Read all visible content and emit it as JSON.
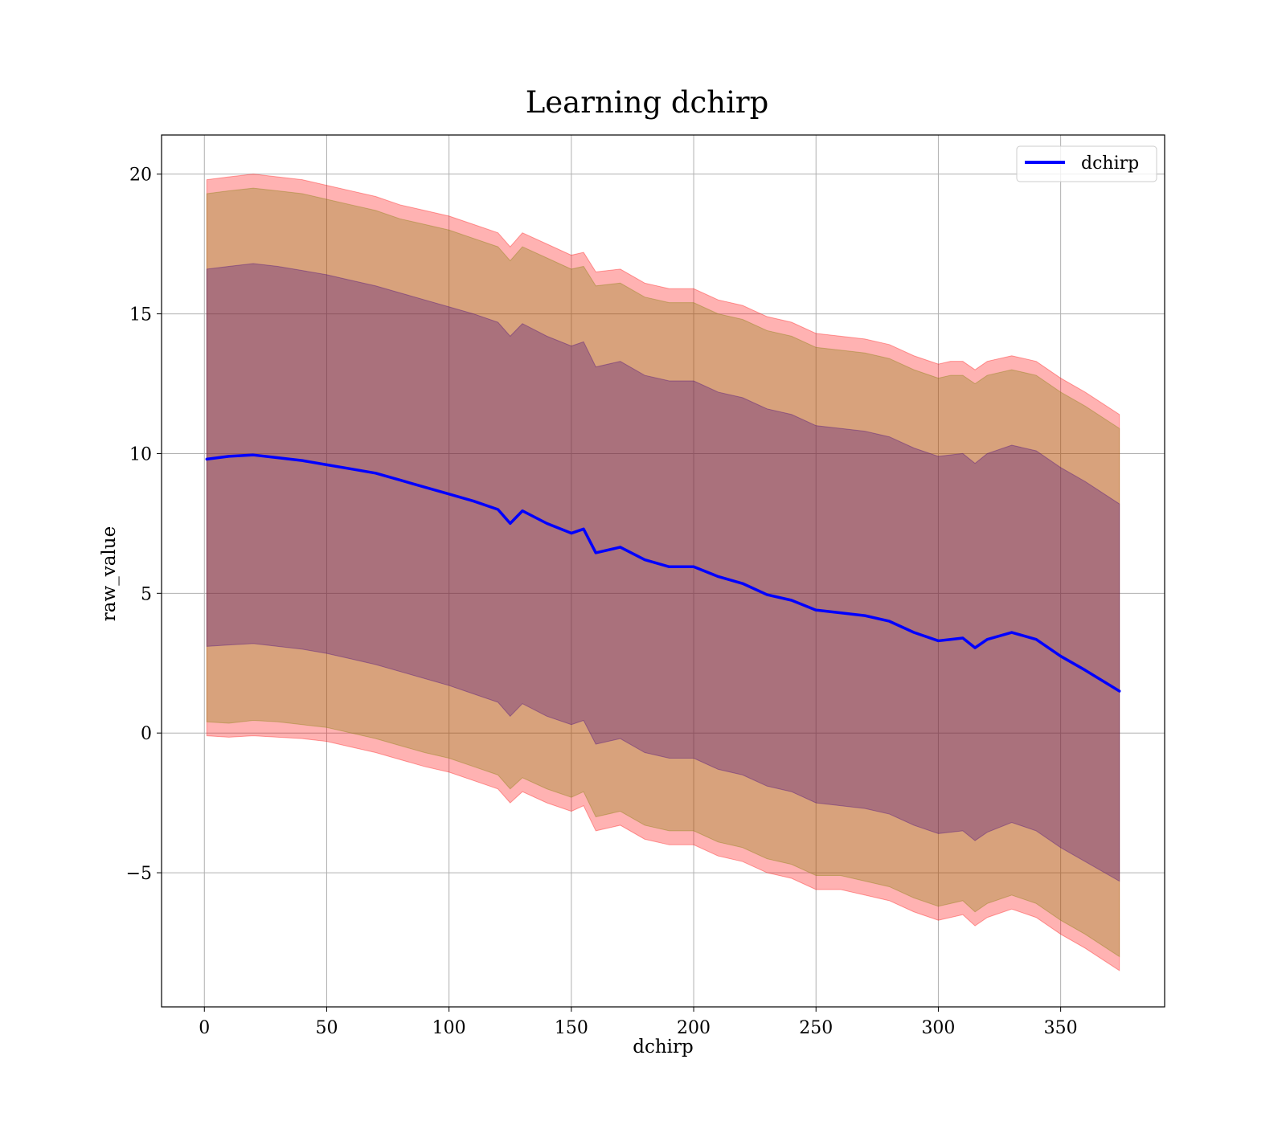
{
  "chart_data": {
    "type": "area",
    "title": "Learning dchirp",
    "xlabel": "dchirp",
    "ylabel": "raw_value",
    "xlim": [
      -17.5,
      392.5
    ],
    "ylim": [
      -9.8,
      21.4
    ],
    "xticks": [
      0,
      50,
      100,
      150,
      200,
      250,
      300,
      350
    ],
    "yticks": [
      -5,
      0,
      5,
      10,
      15,
      20
    ],
    "ytick_labels": [
      "−5",
      "0",
      "5",
      "10",
      "15",
      "20"
    ],
    "grid": true,
    "legend": {
      "position": "top-right",
      "entries": [
        "dchirp"
      ]
    },
    "x": [
      1,
      10,
      20,
      30,
      40,
      50,
      60,
      70,
      80,
      90,
      100,
      110,
      120,
      125,
      130,
      140,
      150,
      155,
      160,
      170,
      180,
      190,
      200,
      210,
      220,
      230,
      240,
      250,
      260,
      270,
      280,
      290,
      300,
      305,
      310,
      315,
      320,
      330,
      340,
      350,
      360,
      374
    ],
    "series": [
      {
        "name": "dchirp",
        "color": "#0000ff",
        "values": [
          9.8,
          9.9,
          9.95,
          9.85,
          9.75,
          9.6,
          9.45,
          9.3,
          9.05,
          8.8,
          8.55,
          8.3,
          8.0,
          7.5,
          7.95,
          7.5,
          7.15,
          7.3,
          6.45,
          6.65,
          6.2,
          5.95,
          5.95,
          5.6,
          5.35,
          4.95,
          4.75,
          4.4,
          4.3,
          4.2,
          4.0,
          3.6,
          3.3,
          3.35,
          3.4,
          3.05,
          3.35,
          3.6,
          3.35,
          2.75,
          2.25,
          1.5
        ]
      }
    ],
    "bands": [
      {
        "name": "outer",
        "color": "#ff0000",
        "opacity": 0.3,
        "lower": [
          -0.1,
          -0.15,
          -0.1,
          -0.15,
          -0.2,
          -0.3,
          -0.5,
          -0.7,
          -0.95,
          -1.2,
          -1.4,
          -1.7,
          -2.0,
          -2.5,
          -2.1,
          -2.5,
          -2.8,
          -2.6,
          -3.5,
          -3.3,
          -3.8,
          -4.0,
          -4.0,
          -4.4,
          -4.6,
          -5.0,
          -5.2,
          -5.6,
          -5.6,
          -5.8,
          -6.0,
          -6.4,
          -6.7,
          -6.6,
          -6.5,
          -6.9,
          -6.6,
          -6.3,
          -6.6,
          -7.2,
          -7.7,
          -8.5
        ],
        "upper": [
          19.8,
          19.9,
          20.0,
          19.9,
          19.8,
          19.6,
          19.4,
          19.2,
          18.9,
          18.7,
          18.5,
          18.2,
          17.9,
          17.4,
          17.9,
          17.5,
          17.1,
          17.2,
          16.5,
          16.6,
          16.1,
          15.9,
          15.9,
          15.5,
          15.3,
          14.9,
          14.7,
          14.3,
          14.2,
          14.1,
          13.9,
          13.5,
          13.2,
          13.3,
          13.3,
          13.0,
          13.3,
          13.5,
          13.3,
          12.7,
          12.2,
          11.4
        ]
      },
      {
        "name": "middle",
        "color": "#7f7f00",
        "opacity": 0.3,
        "lower": [
          0.4,
          0.35,
          0.45,
          0.4,
          0.3,
          0.2,
          0.0,
          -0.2,
          -0.45,
          -0.7,
          -0.9,
          -1.2,
          -1.5,
          -2.0,
          -1.6,
          -2.0,
          -2.3,
          -2.1,
          -3.0,
          -2.8,
          -3.3,
          -3.5,
          -3.5,
          -3.9,
          -4.1,
          -4.5,
          -4.7,
          -5.1,
          -5.1,
          -5.3,
          -5.5,
          -5.9,
          -6.2,
          -6.1,
          -6.0,
          -6.4,
          -6.1,
          -5.8,
          -6.1,
          -6.7,
          -7.2,
          -8.0
        ],
        "upper": [
          19.3,
          19.4,
          19.5,
          19.4,
          19.3,
          19.1,
          18.9,
          18.7,
          18.4,
          18.2,
          18.0,
          17.7,
          17.4,
          16.9,
          17.4,
          17.0,
          16.6,
          16.7,
          16.0,
          16.1,
          15.6,
          15.4,
          15.4,
          15.0,
          14.8,
          14.4,
          14.2,
          13.8,
          13.7,
          13.6,
          13.4,
          13.0,
          12.7,
          12.8,
          12.8,
          12.5,
          12.8,
          13.0,
          12.8,
          12.2,
          11.7,
          10.9
        ]
      },
      {
        "name": "inner",
        "color": "#3f007f",
        "opacity": 0.3,
        "lower": [
          3.1,
          3.15,
          3.2,
          3.1,
          3.0,
          2.85,
          2.65,
          2.45,
          2.2,
          1.95,
          1.7,
          1.4,
          1.1,
          0.6,
          1.05,
          0.6,
          0.3,
          0.45,
          -0.4,
          -0.2,
          -0.7,
          -0.9,
          -0.9,
          -1.3,
          -1.5,
          -1.9,
          -2.1,
          -2.5,
          -2.6,
          -2.7,
          -2.9,
          -3.3,
          -3.6,
          -3.55,
          -3.5,
          -3.85,
          -3.55,
          -3.2,
          -3.5,
          -4.1,
          -4.6,
          -5.3
        ],
        "upper": [
          16.6,
          16.7,
          16.8,
          16.7,
          16.55,
          16.4,
          16.2,
          16.0,
          15.75,
          15.5,
          15.25,
          15.0,
          14.7,
          14.2,
          14.65,
          14.2,
          13.85,
          14.0,
          13.1,
          13.3,
          12.8,
          12.6,
          12.6,
          12.2,
          12.0,
          11.6,
          11.4,
          11.0,
          10.9,
          10.8,
          10.6,
          10.2,
          9.9,
          9.95,
          10.0,
          9.65,
          10.0,
          10.3,
          10.1,
          9.5,
          9.0,
          8.2
        ]
      }
    ]
  }
}
